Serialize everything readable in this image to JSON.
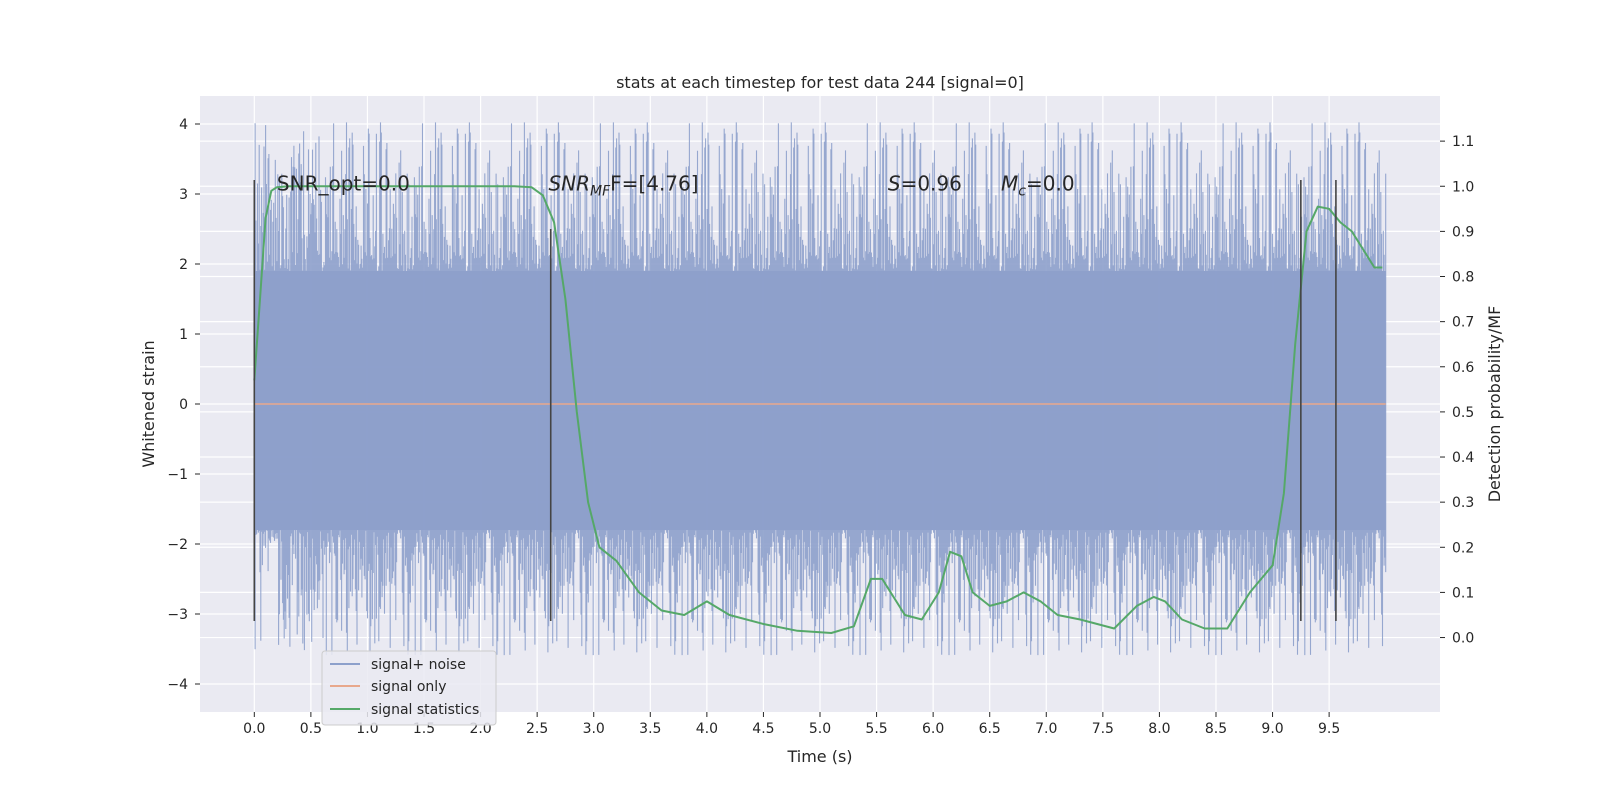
{
  "chart_data": {
    "type": "line",
    "title": "stats at each timestep for test data 244 [signal=0]",
    "xlabel": "Time (s)",
    "ylabel": "Whitened strain",
    "y2label": "Detection probability/MF",
    "xlim": [
      -0.48,
      10.48
    ],
    "ylim": [
      -4.4,
      4.4
    ],
    "y2lim": [
      -0.165,
      1.2
    ],
    "xticks": [
      0.0,
      0.5,
      1.0,
      1.5,
      2.0,
      2.5,
      3.0,
      3.5,
      4.0,
      4.5,
      5.0,
      5.5,
      6.0,
      6.5,
      7.0,
      7.5,
      8.0,
      8.5,
      9.0,
      9.5
    ],
    "xtick_labels": [
      "0.0",
      "0.5",
      "1.0",
      "1.5",
      "2.0",
      "2.5",
      "3.0",
      "3.5",
      "4.0",
      "4.5",
      "5.0",
      "5.5",
      "6.0",
      "6.5",
      "7.0",
      "7.5",
      "8.0",
      "8.5",
      "9.0",
      "9.5"
    ],
    "yticks": [
      -4,
      -3,
      -2,
      -1,
      0,
      1,
      2,
      3,
      4
    ],
    "ytick_labels": [
      "−4",
      "−3",
      "−2",
      "−1",
      "0",
      "1",
      "2",
      "3",
      "4"
    ],
    "y2ticks": [
      0.0,
      0.1,
      0.2,
      0.3,
      0.4,
      0.5,
      0.6,
      0.7,
      0.8,
      0.9,
      1.0,
      1.1
    ],
    "y2tick_labels": [
      "0.0",
      "0.1",
      "0.2",
      "0.3",
      "0.4",
      "0.5",
      "0.6",
      "0.7",
      "0.8",
      "0.9",
      "1.0",
      "1.1"
    ],
    "grid": true,
    "legend_position": "lower-left",
    "series": [
      {
        "name": "signal+ noise",
        "axis": "left",
        "color": "#8da0cb",
        "kind": "noise",
        "x_range": [
          0.0,
          10.0
        ],
        "band": [
          -1.8,
          1.9
        ],
        "envelope_low": [
          -3.6,
          -2.0
        ],
        "envelope_high": [
          2.0,
          4.05
        ]
      },
      {
        "name": "signal only",
        "axis": "left",
        "color": "#e8a88c",
        "x": [
          0.0,
          10.0
        ],
        "y": [
          0.0,
          0.0
        ]
      },
      {
        "name": "signal statistics",
        "axis": "right",
        "color": "#55a868",
        "x": [
          0.0,
          0.05,
          0.1,
          0.15,
          0.2,
          0.3,
          0.5,
          1.0,
          1.5,
          2.0,
          2.3,
          2.45,
          2.55,
          2.65,
          2.75,
          2.85,
          2.95,
          3.05,
          3.2,
          3.4,
          3.6,
          3.8,
          4.0,
          4.2,
          4.5,
          4.8,
          5.1,
          5.3,
          5.45,
          5.55,
          5.65,
          5.75,
          5.9,
          6.05,
          6.15,
          6.25,
          6.35,
          6.5,
          6.65,
          6.8,
          6.95,
          7.1,
          7.3,
          7.6,
          7.8,
          7.95,
          8.05,
          8.2,
          8.4,
          8.6,
          8.8,
          9.0,
          9.1,
          9.2,
          9.3,
          9.4,
          9.5,
          9.6,
          9.7,
          9.8,
          9.9,
          9.97
        ],
        "y": [
          0.57,
          0.75,
          0.93,
          0.99,
          0.998,
          1.0,
          1.0,
          1.0,
          1.0,
          1.0,
          1.0,
          0.998,
          0.98,
          0.92,
          0.75,
          0.5,
          0.3,
          0.2,
          0.17,
          0.1,
          0.06,
          0.05,
          0.08,
          0.05,
          0.03,
          0.015,
          0.01,
          0.025,
          0.13,
          0.13,
          0.09,
          0.05,
          0.04,
          0.1,
          0.19,
          0.18,
          0.1,
          0.07,
          0.08,
          0.1,
          0.08,
          0.05,
          0.04,
          0.02,
          0.07,
          0.09,
          0.08,
          0.04,
          0.02,
          0.02,
          0.1,
          0.16,
          0.32,
          0.65,
          0.9,
          0.955,
          0.95,
          0.92,
          0.9,
          0.86,
          0.82,
          0.82
        ]
      }
    ],
    "vlines": [
      {
        "x": 0.0,
        "y": [
          -3.1,
          3.2
        ]
      },
      {
        "x": 2.62,
        "y": [
          -3.1,
          2.5
        ]
      },
      {
        "x": 9.25,
        "y": [
          -3.1,
          3.2
        ]
      },
      {
        "x": 9.56,
        "y": [
          -3.1,
          3.2
        ]
      }
    ],
    "annotations": [
      {
        "id": "snr-opt",
        "x": 0.2,
        "y": 3.05,
        "text": "SNR_opt=0.0"
      },
      {
        "id": "snr-mf",
        "x": 2.6,
        "y": 3.05,
        "base": "SNR",
        "sub": "MF",
        "rest": "F=[4.76]"
      },
      {
        "id": "s-stat",
        "x": 5.6,
        "y": 3.05,
        "italic": "S",
        "rest": "=0.96"
      },
      {
        "id": "mc-stat",
        "x": 6.6,
        "y": 3.05,
        "italic": "M",
        "sub": "c",
        "rest": "=0.0"
      }
    ]
  }
}
